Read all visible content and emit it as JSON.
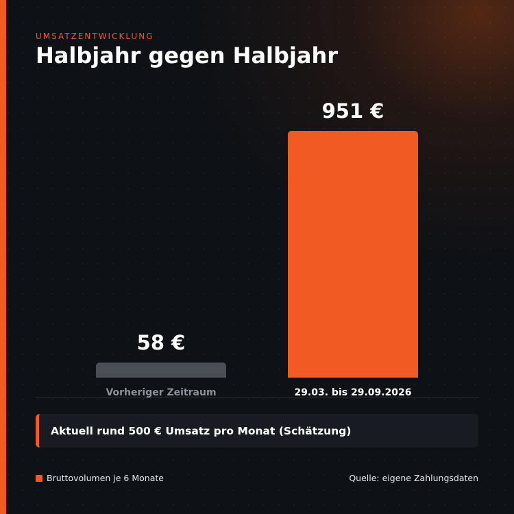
{
  "header": {
    "kicker": "UMSATZENTWICKLUNG",
    "title": "Halbjahr gegen Halbjahr"
  },
  "chart_data": {
    "type": "bar",
    "categories": [
      "Vorheriger Zeitraum",
      "29.03. bis 29.09.2026"
    ],
    "values": [
      58,
      951
    ],
    "value_labels": [
      "58 €",
      "951 €"
    ],
    "bar_colors": [
      "#4a4e57",
      "#f25a24"
    ],
    "label_colors": [
      "#8d9199",
      "#ffffff"
    ],
    "ylim": [
      0,
      951
    ],
    "grid": false,
    "legend_position": "bottom-left"
  },
  "callout": {
    "text": "Aktuell rund 500 € Umsatz pro Monat (Schätzung)"
  },
  "legend": {
    "label": "Bruttovolumen je 6 Monate",
    "color": "#f25a24"
  },
  "footer": {
    "source": "Quelle: eigene Zahlungsdaten"
  },
  "colors": {
    "accent": "#f25a24",
    "background": "#0e1115",
    "panel": "#181b21"
  }
}
